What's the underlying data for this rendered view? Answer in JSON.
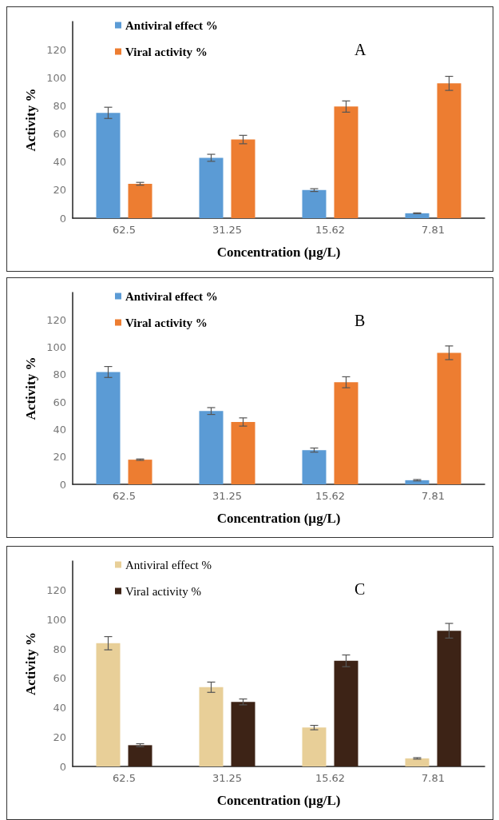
{
  "chart_data": [
    {
      "type": "bar",
      "title": "A",
      "xlabel": "Concentration (µg/L)",
      "ylabel": "Activity %",
      "categories": [
        "62.5",
        "31.25",
        "15.62",
        "7.81"
      ],
      "ylim": [
        0,
        140
      ],
      "yticks": [
        0,
        20,
        40,
        60,
        80,
        100,
        120
      ],
      "grid": false,
      "legend": "top left",
      "series": [
        {
          "name": "Antiviral effect %",
          "color": "#5b9bd5",
          "values": [
            75,
            43,
            20,
            3.5
          ],
          "errors": [
            4,
            2.5,
            1,
            0.3
          ]
        },
        {
          "name": "Viral activity %",
          "color": "#ed7d31",
          "values": [
            24.5,
            56,
            79.5,
            96
          ],
          "errors": [
            1,
            3,
            4,
            5
          ]
        }
      ]
    },
    {
      "type": "bar",
      "title": "B",
      "xlabel": "Concentration (µg/L)",
      "ylabel": "Activity %",
      "categories": [
        "62.5",
        "31.25",
        "15.62",
        "7.81"
      ],
      "ylim": [
        0,
        140
      ],
      "yticks": [
        0,
        20,
        40,
        60,
        80,
        100,
        120
      ],
      "grid": false,
      "legend": "top left",
      "series": [
        {
          "name": "Antiviral effect %",
          "color": "#5b9bd5",
          "values": [
            82,
            53.5,
            25,
            3
          ],
          "errors": [
            4,
            2.5,
            1.5,
            0.5
          ]
        },
        {
          "name": "Viral activity %",
          "color": "#ed7d31",
          "values": [
            18,
            45.5,
            74.5,
            96
          ],
          "errors": [
            0.5,
            3,
            4,
            5
          ]
        }
      ]
    },
    {
      "type": "bar",
      "title": "C",
      "xlabel": "Concentration (µg/L)",
      "ylabel": "Activity %",
      "categories": [
        "62.5",
        "31.25",
        "15.62",
        "7.81"
      ],
      "ylim": [
        0,
        140
      ],
      "yticks": [
        0,
        20,
        40,
        60,
        80,
        100,
        120
      ],
      "grid": false,
      "legend": "top left",
      "series": [
        {
          "name": "Antiviral effect %",
          "color": "#e8cf98",
          "values": [
            84,
            54,
            26.5,
            5.5
          ],
          "errors": [
            4.5,
            3.5,
            1.5,
            0.5
          ]
        },
        {
          "name": "Viral activity %",
          "color": "#3d2316",
          "values": [
            14.5,
            44,
            72,
            92.5
          ],
          "errors": [
            1,
            2,
            4,
            5
          ]
        }
      ]
    }
  ]
}
